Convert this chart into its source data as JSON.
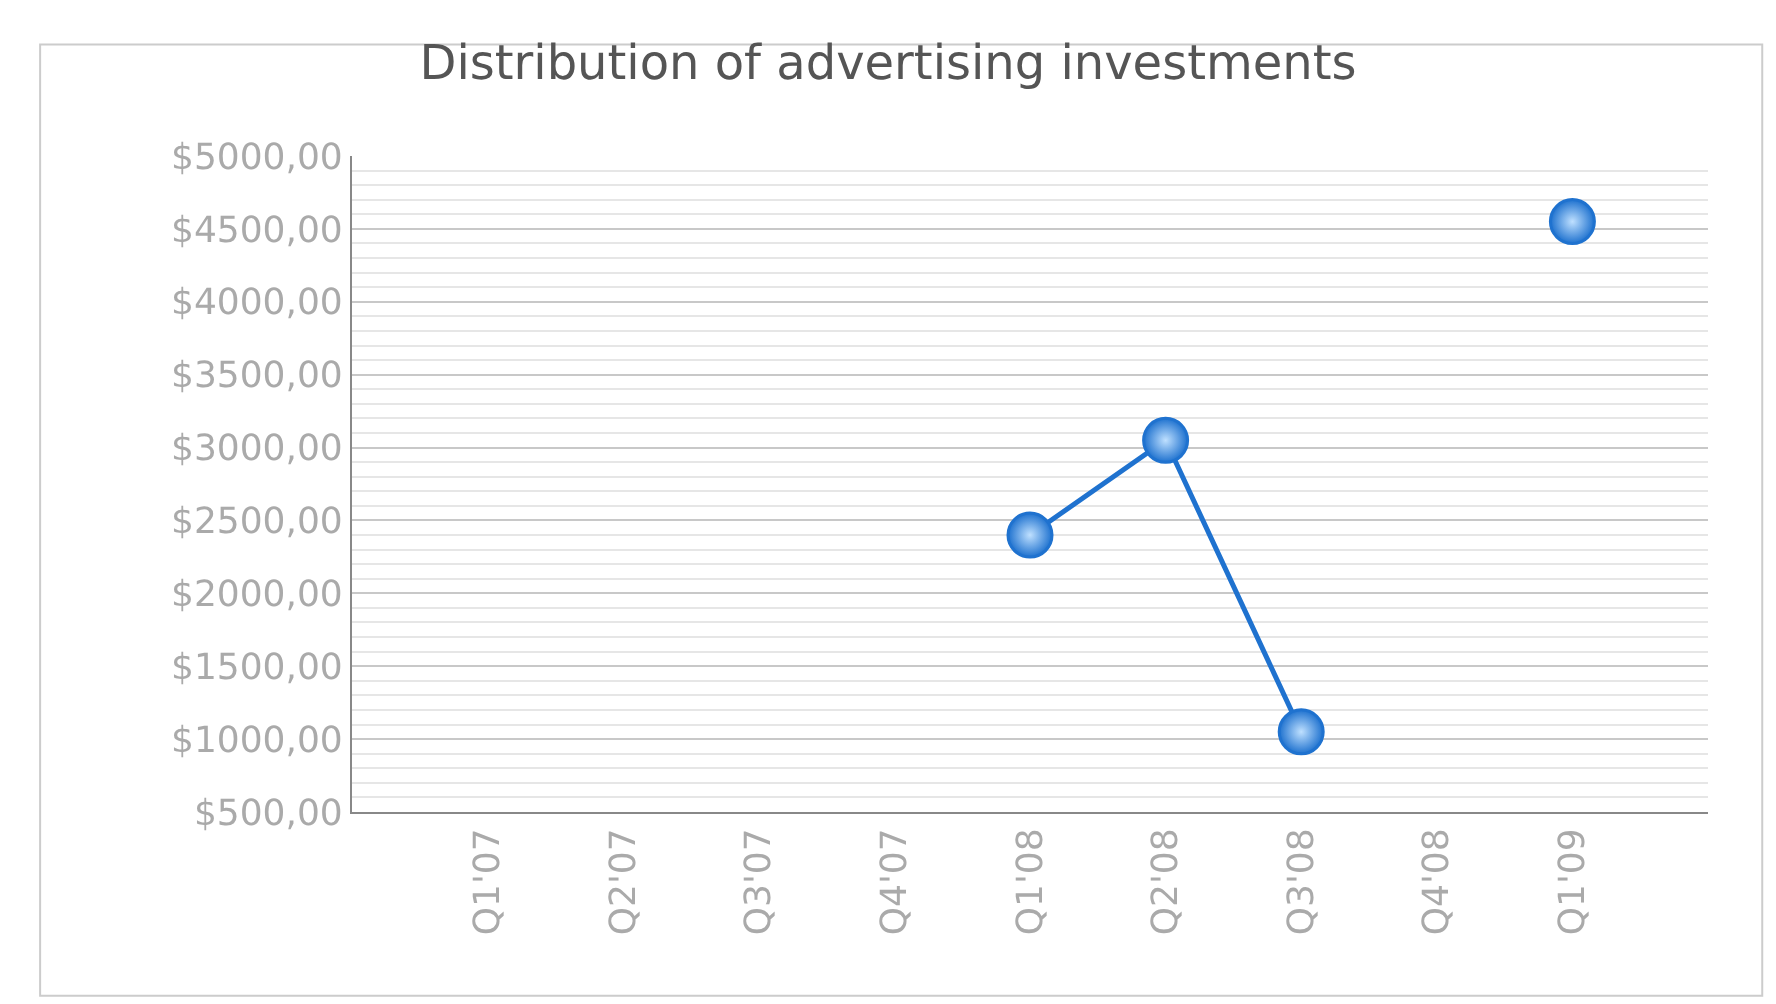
{
  "chart_data": {
    "type": "line",
    "title": "Distribution of advertising investments",
    "categories": [
      "Q1'07",
      "Q2'07",
      "Q3'07",
      "Q4'07",
      "Q1'08",
      "Q2'08",
      "Q3'08",
      "Q4'08",
      "Q1'09"
    ],
    "series": [
      {
        "color": "#1f72cf",
        "values": [
          null,
          null,
          null,
          null,
          2400,
          3050,
          1050,
          null,
          4550
        ]
      }
    ],
    "ylim": [
      500,
      5000
    ],
    "yticks": [
      {
        "value": 500,
        "label": "$500,00"
      },
      {
        "value": 1000,
        "label": "$1000,00"
      },
      {
        "value": 1500,
        "label": "$1500,00"
      },
      {
        "value": 2000,
        "label": "$2000,00"
      },
      {
        "value": 2500,
        "label": "$2500,00"
      },
      {
        "value": 3000,
        "label": "$3000,00"
      },
      {
        "value": 3500,
        "label": "$3500,00"
      },
      {
        "value": 4000,
        "label": "$4000,00"
      },
      {
        "value": 4500,
        "label": "$4500,00"
      },
      {
        "value": 5000,
        "label": "$5000,00"
      }
    ],
    "grid": true,
    "marker": "circle",
    "line_style": "solid"
  }
}
